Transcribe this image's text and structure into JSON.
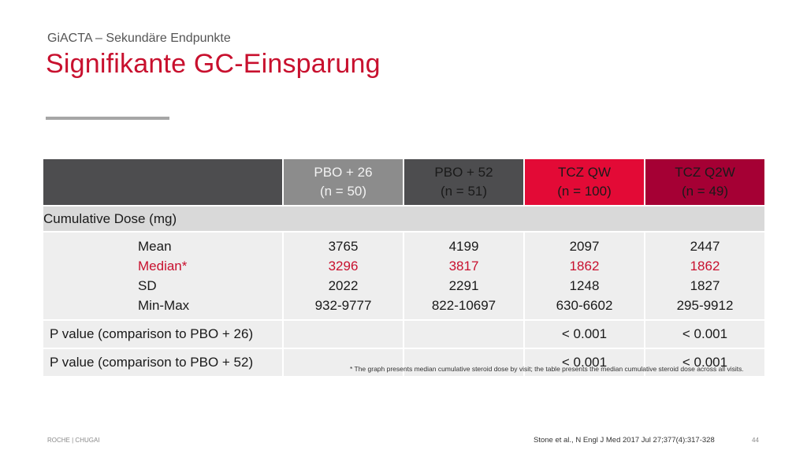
{
  "header": {
    "subtitle": "GiACTA – Sekundäre Endpunkte",
    "title": "Signifikante GC-Einsparung"
  },
  "table": {
    "columns": [
      {
        "name": "PBO + 26",
        "n": "(n = 50)"
      },
      {
        "name": "PBO + 52",
        "n": "(n = 51)"
      },
      {
        "name": "TCZ QW",
        "n": "(n = 100)"
      },
      {
        "name": "TCZ Q2W",
        "n": "(n = 49)"
      }
    ],
    "section_label": "Cumulative Dose (mg)",
    "stat_labels": [
      "Mean",
      "Median*",
      "SD",
      "Min-Max"
    ],
    "stats": [
      {
        "mean": "3765",
        "median": "3296",
        "sd": "2022",
        "minmax": "932-9777"
      },
      {
        "mean": "4199",
        "median": "3817",
        "sd": "2291",
        "minmax": "822-10697"
      },
      {
        "mean": "2097",
        "median": "1862",
        "sd": "1248",
        "minmax": "630-6602"
      },
      {
        "mean": "2447",
        "median": "1862",
        "sd": "1827",
        "minmax": "295-9912"
      }
    ],
    "p_rows": [
      {
        "label": "P value (comparison to PBO + 26)",
        "values": [
          "",
          "",
          "< 0.001",
          "< 0.001"
        ]
      },
      {
        "label": "P value (comparison to PBO + 52)",
        "values": [
          "",
          "",
          "< 0.001",
          "< 0.001"
        ]
      }
    ]
  },
  "footnote": "* The graph presents median cumulative steroid dose by visit; the table presents the median cumulative steroid dose across all visits.",
  "footer": {
    "left": "ROCHE | CHUGAI",
    "reference": "Stone et al., N Engl J Med 2017 Jul 27;377(4):317-328",
    "page_number": "44"
  },
  "colors": {
    "accent": "#c8102e",
    "tcz_qw": "#e30a36",
    "tcz_q2w": "#a50034",
    "dark_gray": "#4d4d4f"
  }
}
